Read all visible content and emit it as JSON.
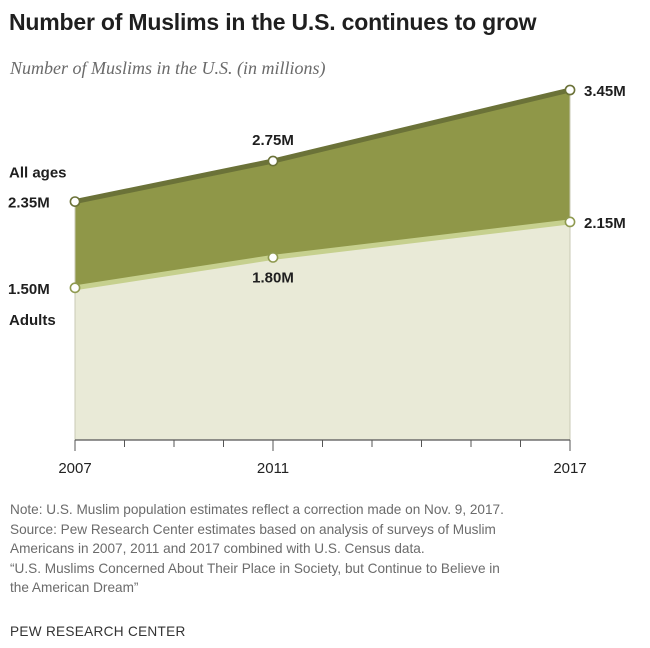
{
  "title": "Number of Muslims in the U.S. continues to grow",
  "subtitle": "Number of Muslims in the U.S. (in millions)",
  "colors": {
    "all_ages_fill": "#8f9748",
    "all_ages_line": "#6b7238",
    "adults_fill": "#e9ead7",
    "adults_line": "#c6d08e",
    "axis": "#555555"
  },
  "chart_data": {
    "type": "area",
    "x": [
      2007,
      2011,
      2017
    ],
    "x_tick_labels": [
      "2007",
      "2011",
      "2017"
    ],
    "x_range": [
      2007,
      2017
    ],
    "y_range": [
      0,
      3.45
    ],
    "grid": false,
    "series": [
      {
        "name": "All ages",
        "values": [
          2.35,
          2.75,
          3.45
        ],
        "labels": [
          "2.35M",
          "2.75M",
          "3.45M"
        ]
      },
      {
        "name": "Adults",
        "values": [
          1.5,
          1.8,
          2.15
        ],
        "labels": [
          "1.50M",
          "1.80M",
          "2.15M"
        ]
      }
    ]
  },
  "notes": [
    "Note: U.S. Muslim population estimates reflect a correction made on Nov. 9, 2017.",
    "Source: Pew Research Center estimates based on analysis of surveys of Muslim",
    "Americans in 2007, 2011 and 2017 combined with U.S. Census data.",
    "“U.S. Muslims Concerned About Their Place in Society, but Continue to Believe in",
    "the American Dream”"
  ],
  "brand": "PEW RESEARCH CENTER"
}
